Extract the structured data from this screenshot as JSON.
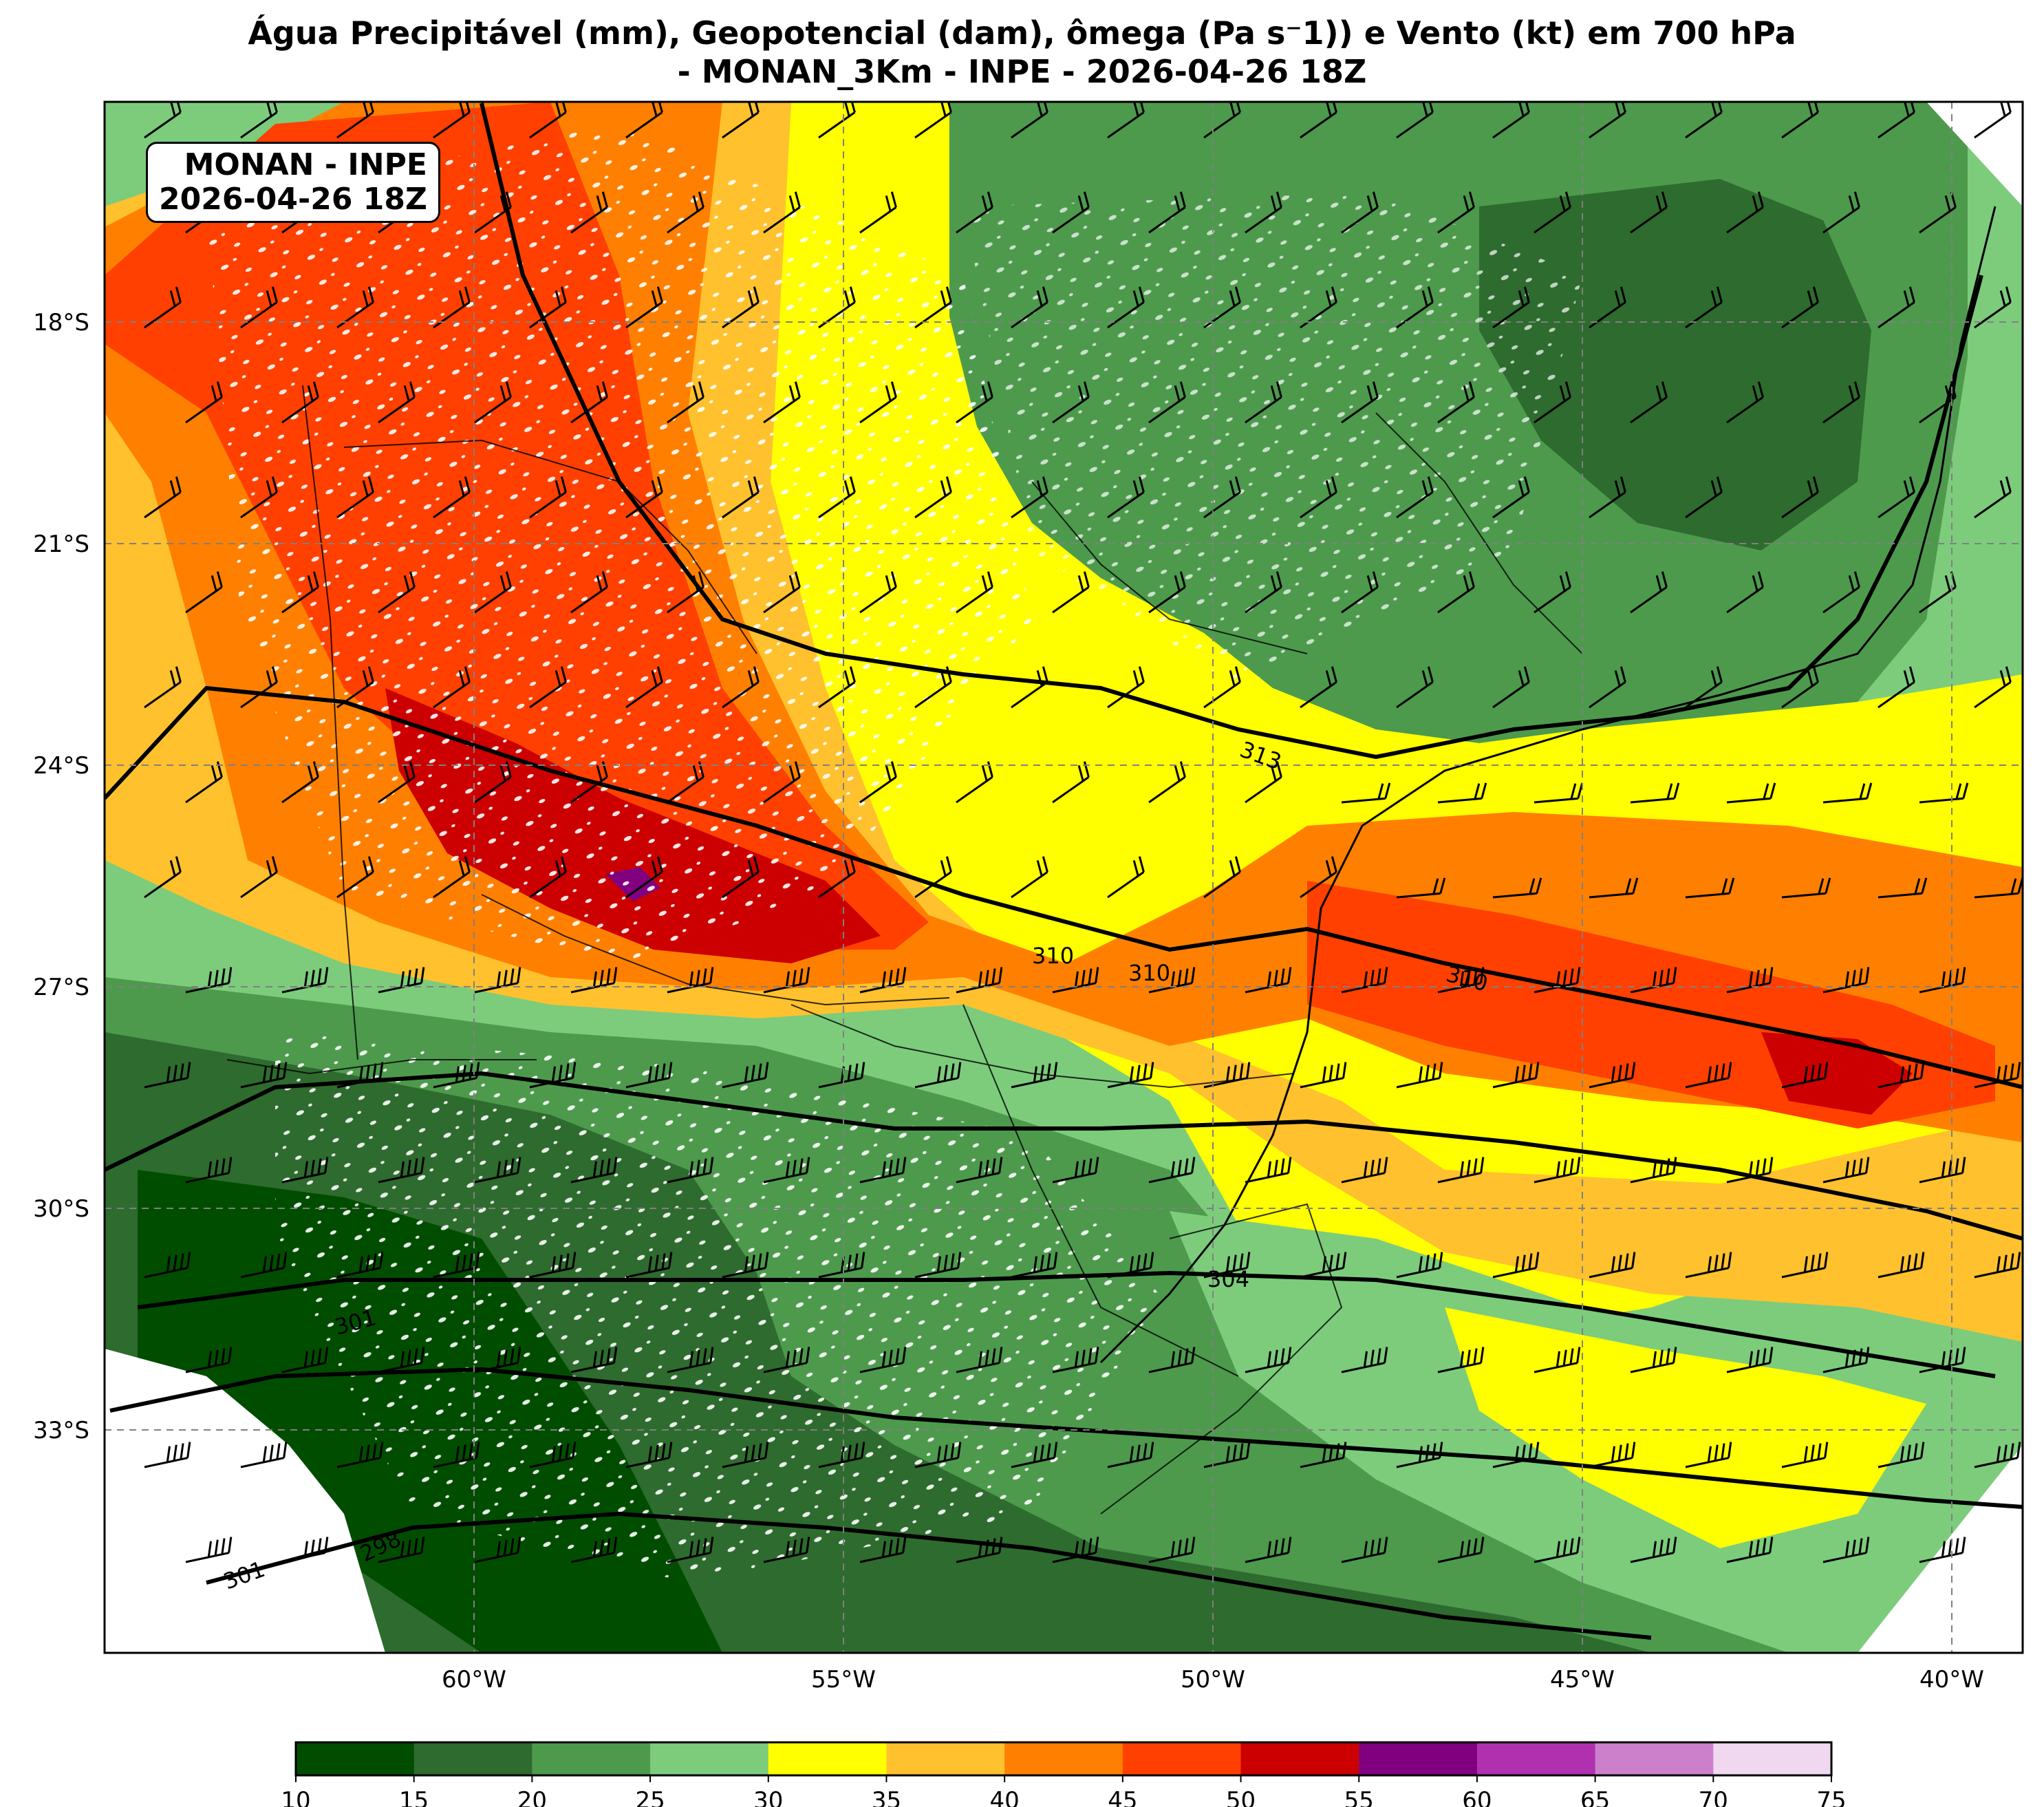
{
  "title": {
    "line1": "Água Precipitável (mm), Geopotencial (dam), ômega (Pa s⁻1)) e Vento (kt) em 700 hPa",
    "line2": "- MONAN_3Km - INPE - 2026-04-26 18Z"
  },
  "info_box": {
    "line1": "MONAN - INPE",
    "line2": "2026-04-26 18Z"
  },
  "axes": {
    "lat_ticks": [
      "18°S",
      "21°S",
      "24°S",
      "27°S",
      "30°S",
      "33°S"
    ],
    "lon_ticks": [
      "60°W",
      "55°W",
      "50°W",
      "45°W",
      "40°W"
    ]
  },
  "colorbar": {
    "ticks": [
      "10",
      "15",
      "20",
      "25",
      "30",
      "35",
      "40",
      "45",
      "50",
      "55",
      "60",
      "65",
      "70",
      "75"
    ],
    "colors": [
      "#004d00",
      "#2e6b2e",
      "#4d9a4d",
      "#7ccc7c",
      "#ffff00",
      "#ffc12e",
      "#ff8000",
      "#ff4000",
      "#cc0000",
      "#800080",
      "#b030b0",
      "#cc80cc",
      "#f0d8f0"
    ]
  },
  "field_colors": {
    "white_speckle": "#ffffff",
    "contour": "#000000",
    "border": "#000000",
    "grid": "#808080"
  },
  "contour_labels": [
    "313",
    "310",
    "310",
    "310",
    "304",
    "301",
    "301",
    "298"
  ]
}
